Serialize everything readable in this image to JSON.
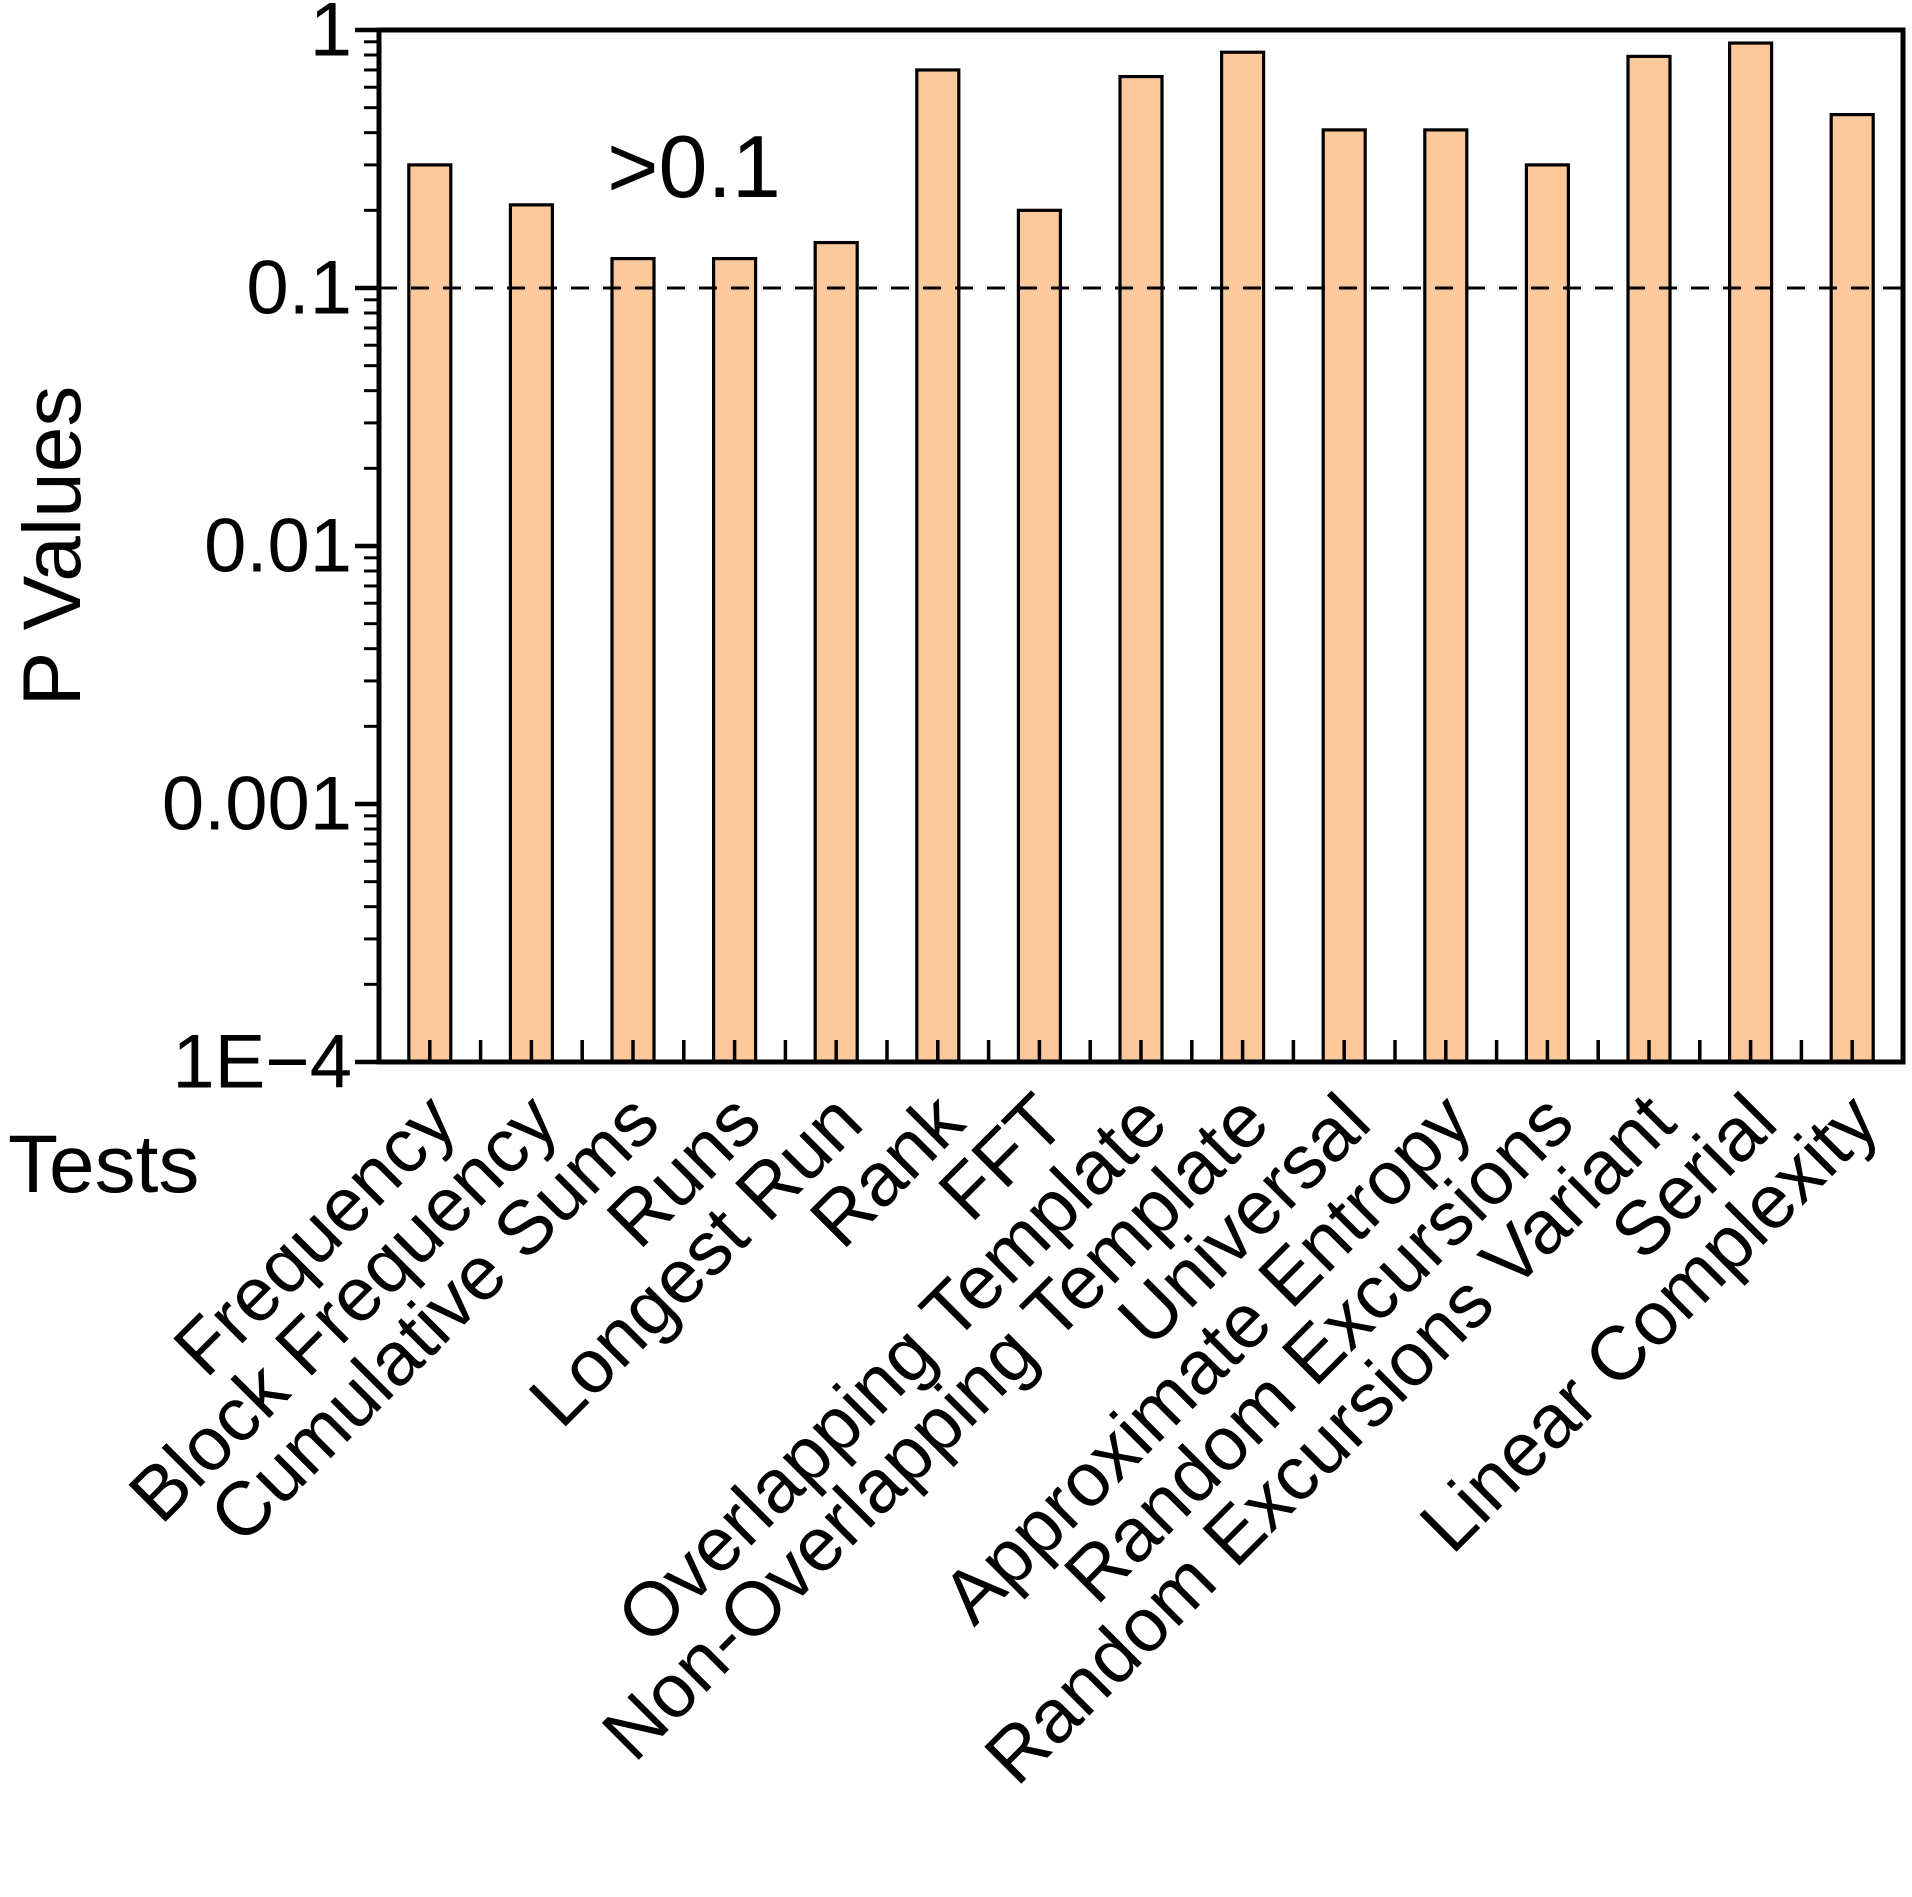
{
  "figure": {
    "background_color": "#ffffff",
    "text_color": "#000000"
  },
  "chart_data": {
    "type": "bar",
    "title": "",
    "xlabel": "Tests",
    "ylabel": "P Values",
    "y_scale": "log",
    "ylim": [
      0.0001,
      1
    ],
    "grid": false,
    "legend": false,
    "categories": [
      "Frequency",
      "Block Frequency",
      "Cumulative Sums",
      "Runs",
      "Longest Run",
      "Rank",
      "FFT",
      "Overlapping Template",
      "Non-Overlapping Template",
      "Universal",
      "Approximate Entropy",
      "Random Excursions",
      "Random Excursions Variant",
      "Serial",
      "Linear Complexity"
    ],
    "values": [
      0.3,
      0.21,
      0.13,
      0.13,
      0.15,
      0.7,
      0.2,
      0.66,
      0.82,
      0.41,
      0.41,
      0.3,
      0.79,
      0.89,
      0.47
    ],
    "y_tick_labels": [
      "1",
      "0.1",
      "0.01",
      "0.001",
      "1E−4"
    ],
    "y_tick_values": [
      1,
      0.1,
      0.01,
      0.001,
      0.0001
    ],
    "reference_line": {
      "value": 0.1,
      "style": "dashed",
      "color": "#000000"
    },
    "annotation": {
      "text": ">0.1"
    },
    "bar_color": "#FAC89A",
    "bar_edge_color": "#000000",
    "axis_color": "#000000"
  }
}
